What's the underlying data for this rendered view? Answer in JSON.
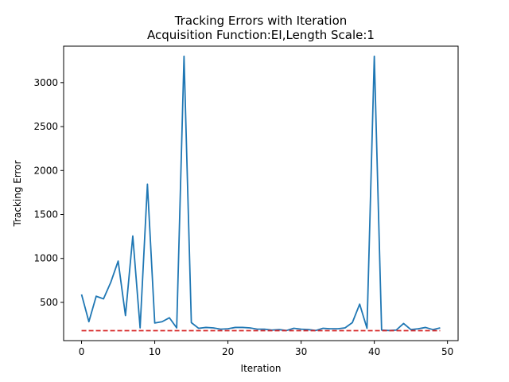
{
  "chart_data": {
    "type": "line",
    "title": "Tracking Errors with Iteration",
    "subtitle": "Acquisition Function:EI,Length Scale:1",
    "xlabel": "Iteration",
    "ylabel": "Tracking Error",
    "xlim": [
      -2.45,
      51.45
    ],
    "ylim": [
      65,
      3415
    ],
    "xticks": [
      0,
      10,
      20,
      30,
      40,
      50
    ],
    "yticks": [
      500,
      1000,
      1500,
      2000,
      2500,
      3000
    ],
    "grid": false,
    "legend": "none",
    "series": [
      {
        "color": "#1f77b4",
        "style": "solid",
        "x": [
          0,
          1,
          2,
          3,
          4,
          5,
          6,
          7,
          8,
          9,
          10,
          11,
          12,
          13,
          14,
          15,
          16,
          17,
          18,
          19,
          20,
          21,
          22,
          23,
          24,
          25,
          26,
          27,
          28,
          29,
          30,
          31,
          32,
          33,
          34,
          35,
          36,
          37,
          38,
          39,
          40,
          41,
          42,
          43,
          44,
          45,
          46,
          47,
          48,
          49
        ],
        "values": [
          590,
          280,
          570,
          540,
          730,
          970,
          350,
          1255,
          210,
          1845,
          265,
          280,
          325,
          210,
          3300,
          270,
          205,
          215,
          210,
          195,
          200,
          215,
          215,
          210,
          195,
          195,
          185,
          190,
          180,
          205,
          195,
          190,
          180,
          205,
          200,
          200,
          210,
          270,
          480,
          205,
          3300,
          185,
          180,
          185,
          260,
          190,
          200,
          215,
          190,
          210
        ]
      },
      {
        "color": "#d62728",
        "style": "dashed",
        "x": [
          0,
          49
        ],
        "values": [
          178,
          178
        ]
      }
    ]
  }
}
